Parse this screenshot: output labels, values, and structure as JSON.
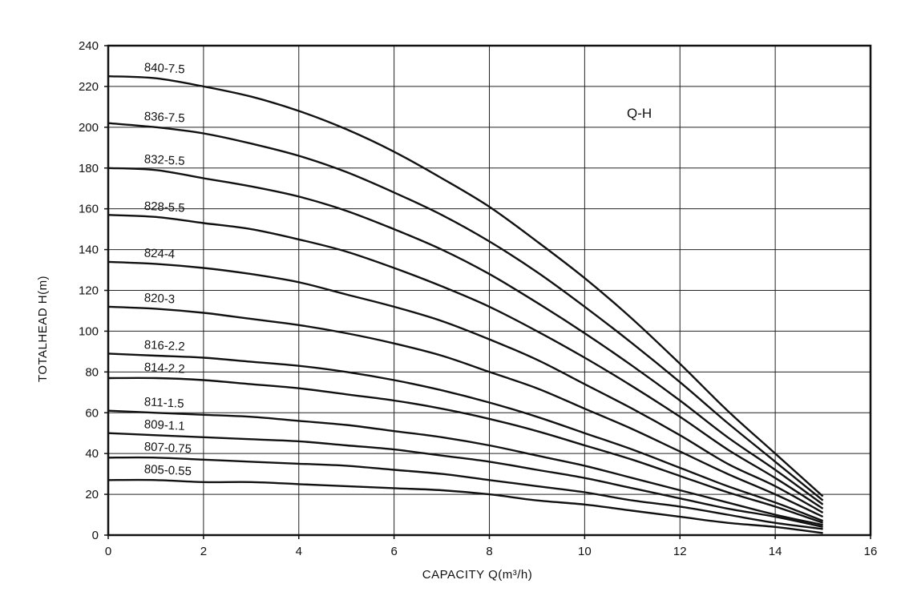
{
  "chart_data": {
    "type": "line",
    "annotation": "Q-H",
    "xlabel": "CAPACITY Q(m³/h)",
    "ylabel": "TOTALHEAD H(m)",
    "xlim": [
      0,
      16
    ],
    "ylim": [
      0,
      240
    ],
    "xticks": [
      "0",
      "2",
      "4",
      "6",
      "8",
      "10",
      "12",
      "14",
      "16"
    ],
    "yticks": [
      "0",
      "20",
      "40",
      "60",
      "80",
      "100",
      "120",
      "140",
      "160",
      "180",
      "200",
      "220",
      "240"
    ],
    "grid": true,
    "series": [
      {
        "name": "840-7.5",
        "x": [
          0,
          1,
          2,
          3,
          4,
          5,
          6,
          7,
          8,
          9,
          10,
          11,
          12,
          13,
          14,
          15
        ],
        "y": [
          225,
          224,
          220,
          215,
          208,
          199,
          188,
          175,
          161,
          144,
          126,
          106,
          84,
          61,
          40,
          19
        ]
      },
      {
        "name": "836-7.5",
        "x": [
          0,
          1,
          2,
          3,
          4,
          5,
          6,
          7,
          8,
          9,
          10,
          11,
          12,
          13,
          14,
          15
        ],
        "y": [
          202,
          200,
          197,
          192,
          186,
          178,
          168,
          157,
          144,
          129,
          112,
          94,
          75,
          55,
          36,
          17
        ]
      },
      {
        "name": "832-5.5",
        "x": [
          0,
          1,
          2,
          3,
          4,
          5,
          6,
          7,
          8,
          9,
          10,
          11,
          12,
          13,
          14,
          15
        ],
        "y": [
          180,
          179,
          175,
          171,
          166,
          159,
          150,
          140,
          128,
          114,
          99,
          83,
          66,
          48,
          32,
          15
        ]
      },
      {
        "name": "828-5.5",
        "x": [
          0,
          1,
          2,
          3,
          4,
          5,
          6,
          7,
          8,
          9,
          10,
          11,
          12,
          13,
          14,
          15
        ],
        "y": [
          157,
          156,
          153,
          150,
          145,
          139,
          131,
          122,
          112,
          100,
          87,
          73,
          58,
          42,
          28,
          13
        ]
      },
      {
        "name": "824-4",
        "x": [
          0,
          1,
          2,
          3,
          4,
          5,
          6,
          7,
          8,
          9,
          10,
          11,
          12,
          13,
          14,
          15
        ],
        "y": [
          134,
          133,
          131,
          128,
          124,
          118,
          112,
          105,
          96,
          86,
          74,
          62,
          49,
          35,
          24,
          11
        ]
      },
      {
        "name": "820-3",
        "x": [
          0,
          1,
          2,
          3,
          4,
          5,
          6,
          7,
          8,
          9,
          10,
          11,
          12,
          13,
          14,
          15
        ],
        "y": [
          112,
          111,
          109,
          106,
          103,
          99,
          94,
          88,
          80,
          72,
          62,
          52,
          41,
          30,
          20,
          9
        ]
      },
      {
        "name": "816-2.2",
        "x": [
          0,
          1,
          2,
          3,
          4,
          5,
          6,
          7,
          8,
          9,
          10,
          11,
          12,
          13,
          14,
          15
        ],
        "y": [
          89,
          88,
          87,
          85,
          83,
          80,
          76,
          71,
          65,
          58,
          50,
          42,
          33,
          24,
          16,
          7
        ]
      },
      {
        "name": "814-2.2",
        "x": [
          0,
          1,
          2,
          3,
          4,
          5,
          6,
          7,
          8,
          9,
          10,
          11,
          12,
          13,
          14,
          15
        ],
        "y": [
          77,
          77,
          76,
          74,
          72,
          69,
          66,
          62,
          57,
          51,
          44,
          37,
          29,
          21,
          14,
          6
        ]
      },
      {
        "name": "811-1.5",
        "x": [
          0,
          1,
          2,
          3,
          4,
          5,
          6,
          7,
          8,
          9,
          10,
          11,
          12,
          13,
          14,
          15
        ],
        "y": [
          61,
          60,
          59,
          58,
          56,
          54,
          51,
          48,
          44,
          39,
          34,
          28,
          22,
          16,
          10,
          5
        ]
      },
      {
        "name": "809-1.1",
        "x": [
          0,
          1,
          2,
          3,
          4,
          5,
          6,
          7,
          8,
          9,
          10,
          11,
          12,
          13,
          14,
          15
        ],
        "y": [
          50,
          49,
          48,
          47,
          46,
          44,
          42,
          39,
          36,
          32,
          28,
          23,
          18,
          13,
          9,
          4
        ]
      },
      {
        "name": "807-0.75",
        "x": [
          0,
          1,
          2,
          3,
          4,
          5,
          6,
          7,
          8,
          9,
          10,
          11,
          12,
          13,
          14,
          15
        ],
        "y": [
          38,
          38,
          37,
          36,
          35,
          34,
          32,
          30,
          27,
          24,
          21,
          17,
          14,
          10,
          6,
          3
        ]
      },
      {
        "name": "805-0.55",
        "x": [
          0,
          1,
          2,
          3,
          4,
          5,
          6,
          7,
          8,
          9,
          10,
          11,
          12,
          13,
          14,
          15
        ],
        "y": [
          27,
          27,
          26,
          26,
          25,
          24,
          23,
          22,
          20,
          17,
          15,
          12,
          9,
          6,
          4,
          1
        ]
      }
    ]
  }
}
